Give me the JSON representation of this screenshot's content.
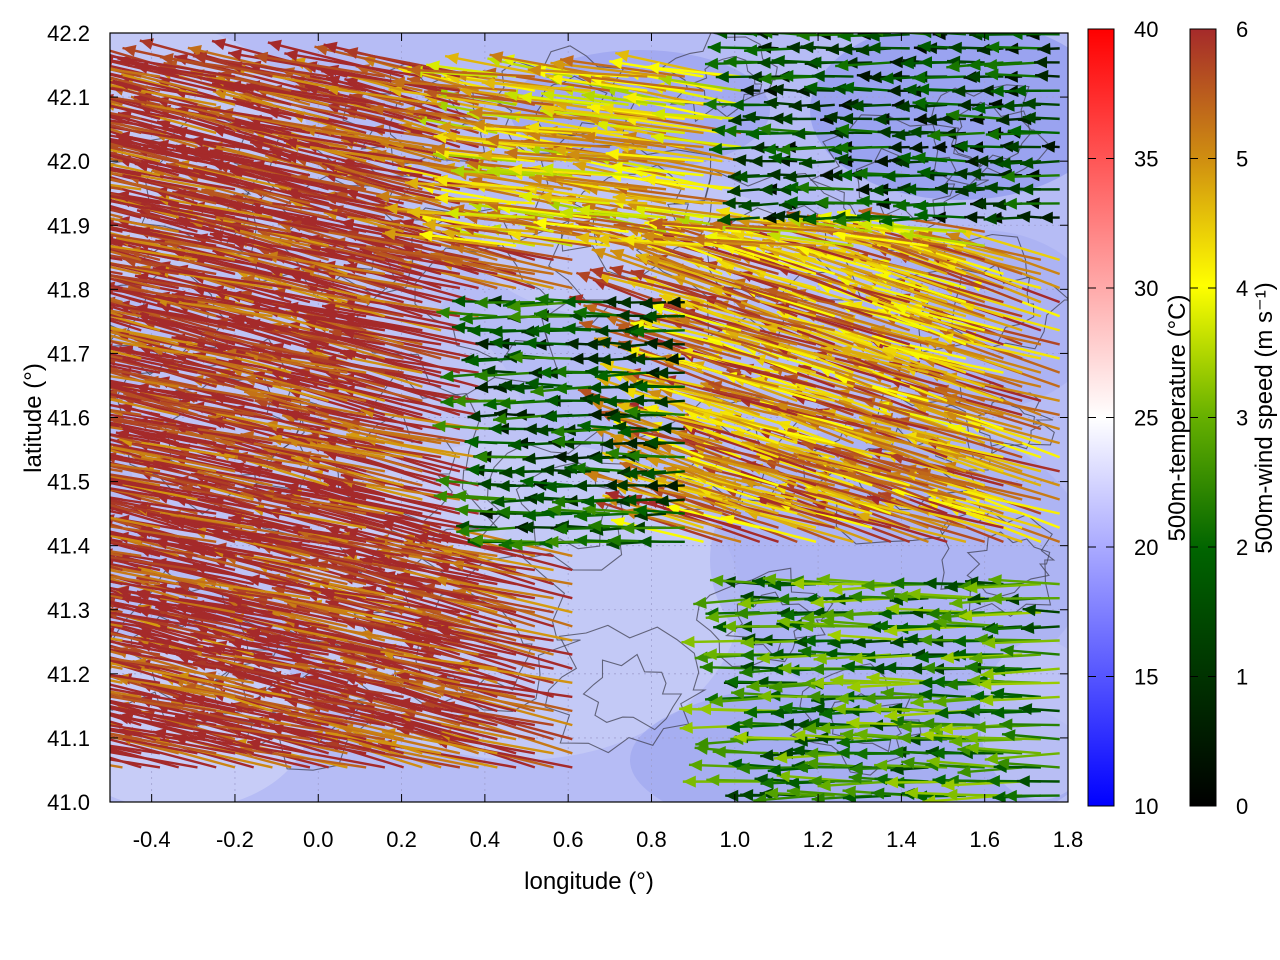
{
  "chart_data": {
    "type": "heatmap",
    "subtype": "vector-field-over-scalar-map",
    "xlabel": "longitude (°)",
    "ylabel": "latitude (°)",
    "xlim": [
      -0.5,
      1.8
    ],
    "ylim": [
      41.0,
      42.2
    ],
    "x_ticks": [
      "-0.4",
      "-0.2",
      "0.0",
      "0.2",
      "0.4",
      "0.6",
      "0.8",
      "1.0",
      "1.2",
      "1.4",
      "1.6",
      "1.8"
    ],
    "y_ticks": [
      "41.0",
      "41.1",
      "41.2",
      "41.3",
      "41.4",
      "41.5",
      "41.6",
      "41.7",
      "41.8",
      "41.9",
      "42.0",
      "42.1",
      "42.2"
    ],
    "grid": true,
    "contours": true,
    "background_field": {
      "name": "500m-temperature",
      "units": "°C",
      "typical_range": [
        17,
        22
      ]
    },
    "colorbars": [
      {
        "label": "500m-temperature (°C)",
        "range": [
          10,
          40
        ],
        "ticks": [
          "10",
          "15",
          "20",
          "25",
          "30",
          "35",
          "40"
        ],
        "colors": [
          "#0000ff",
          "#ffffff",
          "#ff0000"
        ]
      },
      {
        "label": "500m-wind speed (m s⁻¹)",
        "range": [
          0,
          6
        ],
        "ticks": [
          "0",
          "1",
          "2",
          "3",
          "4",
          "5",
          "6"
        ],
        "colors": [
          "#000000",
          "#006400",
          "#66b000",
          "#ffff00",
          "#d09010",
          "#a52a2a"
        ]
      }
    ],
    "wind_regions": [
      {
        "name": "west-strong",
        "lon": [
          -0.5,
          0.6
        ],
        "lat": [
          41.05,
          42.15
        ],
        "speed": 6.0,
        "direction_deg": 167
      },
      {
        "name": "center-north-band",
        "lon": [
          0.4,
          1.6
        ],
        "lat": [
          41.85,
          42.15
        ],
        "speed": 4.5,
        "direction_deg": 172
      },
      {
        "name": "center-calm",
        "lon": [
          0.4,
          0.9
        ],
        "lat": [
          41.4,
          41.8
        ],
        "speed": 1.5,
        "direction_deg": 180
      },
      {
        "name": "northeast-calm",
        "lon": [
          1.0,
          1.8
        ],
        "lat": [
          41.9,
          42.2
        ],
        "speed": 1.2,
        "direction_deg": 180
      },
      {
        "name": "east-diagonal",
        "lon": [
          0.9,
          1.8
        ],
        "lat": [
          41.4,
          41.85
        ],
        "speed": 5.0,
        "direction_deg": 163
      },
      {
        "name": "southeast-flow",
        "lon": [
          1.0,
          1.8
        ],
        "lat": [
          41.0,
          41.35
        ],
        "speed": 2.3,
        "direction_deg": 180
      }
    ]
  }
}
